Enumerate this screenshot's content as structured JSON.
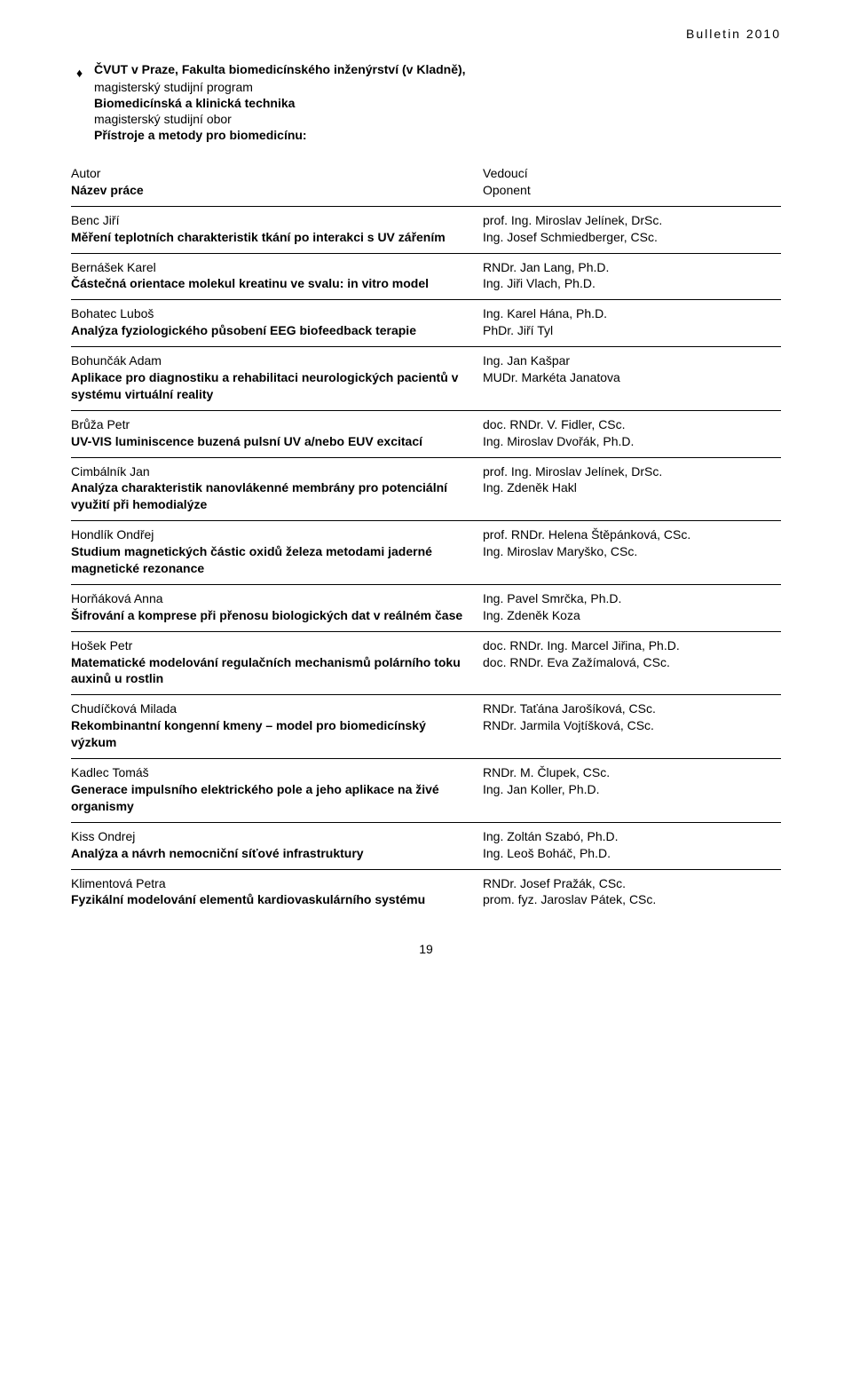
{
  "header_right": "Bulletin 2010",
  "section": {
    "line1_bold": "ČVUT v Praze, Fakulta biomedicínského inženýrství (v Kladně),",
    "line2": "magisterský studijní program",
    "line3_bold": "Biomedicínská a klinická technika",
    "line4": "magisterský studijní obor",
    "line5_bold": "Přístroje a metody pro biomedicínu:"
  },
  "table_header": {
    "left_1": "Autor",
    "left_2": "Název práce",
    "right_1": "Vedoucí",
    "right_2": "Oponent"
  },
  "rows": [
    {
      "author": "Benc Jiří",
      "thesis": "Měření teplotních charakteristik tkání po interakci s UV zářením",
      "sup": "prof. Ing. Miroslav Jelínek, DrSc.",
      "opp": "Ing. Josef Schmiedberger, CSc."
    },
    {
      "author": "Bernášek Karel",
      "thesis": "Částečná orientace molekul kreatinu ve svalu: in vitro model",
      "sup": "RNDr. Jan Lang, Ph.D.",
      "opp": "Ing. Jiři Vlach, Ph.D."
    },
    {
      "author": "Bohatec Luboš",
      "thesis": "Analýza fyziologického působení EEG biofeedback terapie",
      "sup": "Ing. Karel Hána, Ph.D.",
      "opp": "PhDr. Jiří Tyl"
    },
    {
      "author": "Bohunčák Adam",
      "thesis": "Aplikace pro diagnostiku a rehabilitaci neurologických pacientů v systému virtuální reality",
      "sup": "Ing. Jan Kašpar",
      "opp": "MUDr. Markéta Janatova"
    },
    {
      "author": "Brůža Petr",
      "thesis": "UV-VIS luminiscence buzená pulsní UV a/nebo EUV excitací",
      "sup": "doc. RNDr. V. Fidler, CSc.",
      "opp": "Ing. Miroslav Dvořák, Ph.D."
    },
    {
      "author": "Cimbálník Jan",
      "thesis": "Analýza charakteristik nanovlákenné membrány pro potenciální využití při hemodialýze",
      "sup": "prof. Ing. Miroslav Jelínek, DrSc.",
      "opp": "Ing. Zdeněk Hakl"
    },
    {
      "author": "Hondlík Ondřej",
      "thesis": "Studium magnetických částic oxidů železa metodami jaderné magnetické rezonance",
      "sup": "prof. RNDr. Helena Štěpánková, CSc.",
      "opp": "Ing. Miroslav Maryško, CSc."
    },
    {
      "author": "Horňáková Anna",
      "thesis": "Šifrování a komprese při přenosu biologických dat v reálném čase",
      "sup": "Ing. Pavel Smrčka, Ph.D.",
      "opp": "Ing. Zdeněk Koza"
    },
    {
      "author": "Hošek Petr",
      "thesis": "Matematické modelování regulačních mechanismů polárního toku auxinů u rostlin",
      "sup": "doc. RNDr. Ing. Marcel Jiřina, Ph.D.",
      "opp": "doc. RNDr. Eva Zažímalová, CSc."
    },
    {
      "author": "Chudíčková Milada",
      "thesis": "Rekombinantní kongenní kmeny – model pro biomedicínský výzkum",
      "sup": "RNDr. Taťána Jarošíková, CSc.",
      "opp": "RNDr. Jarmila Vojtíšková, CSc."
    },
    {
      "author": "Kadlec Tomáš",
      "thesis": "Generace impulsního elektrického pole a jeho aplikace na živé organismy",
      "sup": "RNDr. M. Člupek, CSc.",
      "opp": "Ing. Jan Koller, Ph.D."
    },
    {
      "author": "Kiss Ondrej",
      "thesis": "Analýza a návrh nemocniční síťové infrastruktury",
      "sup": "Ing. Zoltán Szabó, Ph.D.",
      "opp": "Ing.  Leoš Boháč, Ph.D."
    },
    {
      "author": "Klimentová Petra",
      "thesis": "Fyzikální modelování elementů kardiovaskulárního systému",
      "sup": "RNDr. Josef Pražák, CSc.",
      "opp": "prom. fyz. Jaroslav Pátek, CSc."
    }
  ],
  "page_number": "19",
  "bullet_glyph": "♦"
}
